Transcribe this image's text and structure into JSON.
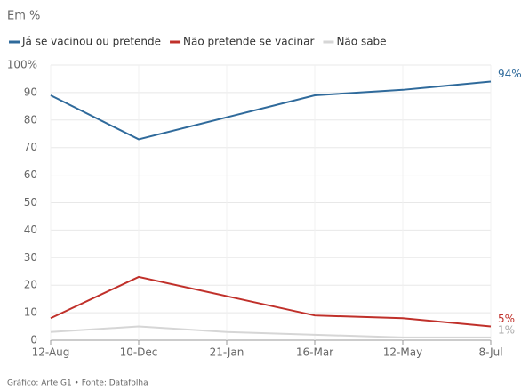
{
  "chart_data": {
    "type": "line",
    "subtitle": "Em %",
    "categories": [
      "12-Aug",
      "10-Dec",
      "21-Jan",
      "16-Mar",
      "12-May",
      "8-Jul"
    ],
    "series": [
      {
        "name": "Já se vacinou ou pretende",
        "color": "#2f6a9b",
        "values": [
          89,
          73,
          81,
          89,
          91,
          94
        ],
        "value_labels": [
          null,
          null,
          null,
          null,
          null,
          "94%"
        ]
      },
      {
        "name": "Não pretende se vacinar",
        "color": "#c0302a",
        "values": [
          8,
          23,
          16,
          9,
          8,
          5
        ],
        "value_labels": [
          null,
          null,
          null,
          null,
          null,
          "5%"
        ]
      },
      {
        "name": "Não sabe",
        "color": "#d6d6d6",
        "values": [
          3,
          5,
          3,
          2,
          1,
          1
        ],
        "value_labels": [
          null,
          null,
          null,
          null,
          null,
          "1%"
        ]
      }
    ],
    "ylim": [
      0,
      100
    ],
    "yticks": [
      0,
      10,
      20,
      30,
      40,
      50,
      60,
      70,
      80,
      90,
      {
        "value": 100,
        "label": "100%"
      }
    ],
    "grid": true,
    "footer": "Gráfico: Arte G1 • Fonte: Datafolha"
  }
}
